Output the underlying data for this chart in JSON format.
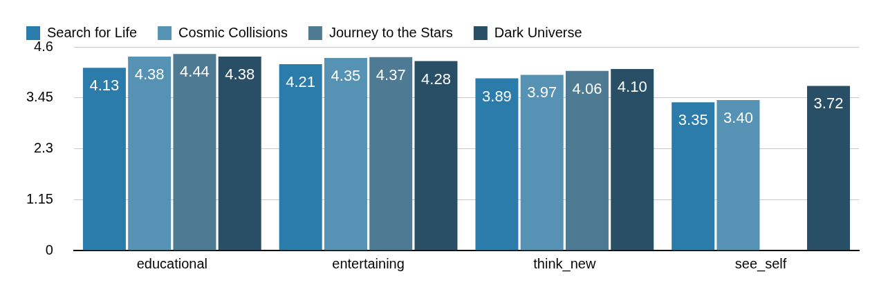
{
  "chart_data": {
    "type": "bar",
    "categories": [
      "educational",
      "entertaining",
      "think_new",
      "see_self"
    ],
    "series": [
      {
        "name": "Search for Life",
        "color": "#2b7bab",
        "values": [
          4.13,
          4.21,
          3.89,
          3.35
        ],
        "value_labels": [
          "4.13",
          "4.21",
          "3.89",
          "3.35"
        ]
      },
      {
        "name": "Cosmic Collisions",
        "color": "#5592b4",
        "values": [
          4.38,
          4.35,
          3.97,
          3.4
        ],
        "value_labels": [
          "4.38",
          "4.35",
          "3.97",
          "3.40"
        ]
      },
      {
        "name": "Journey to the Stars",
        "color": "#4f7a93",
        "values": [
          4.44,
          4.37,
          4.06,
          null
        ],
        "value_labels": [
          "4.44",
          "4.37",
          "4.06",
          null
        ]
      },
      {
        "name": "Dark Universe",
        "color": "#294f66",
        "values": [
          4.38,
          4.28,
          4.1,
          3.72
        ],
        "value_labels": [
          "4.38",
          "4.28",
          "4.10",
          "3.72"
        ]
      }
    ],
    "ylim": [
      0,
      4.6
    ],
    "yticks": [
      0,
      1.15,
      2.3,
      3.45,
      4.6
    ],
    "grid": "y",
    "legend": "top"
  }
}
